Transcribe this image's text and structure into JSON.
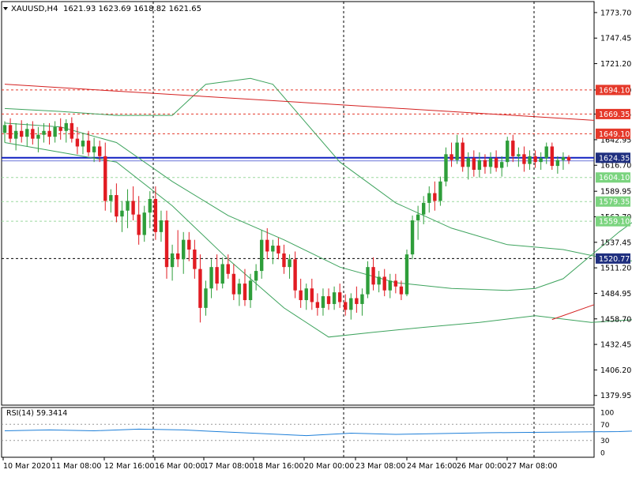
{
  "header": {
    "symbol": "XAUUSD,H4",
    "ohlc": "1621.93 1623.69 1618.82 1621.65"
  },
  "rsi_header": "RSI(14) 59.3414",
  "colors": {
    "bull": "#2e9e3a",
    "bear": "#e11b22",
    "band": "#3da35d",
    "trend": "#d42020",
    "hline_blue": "#1020c0",
    "badge_red": "#e5392a",
    "badge_green": "#7bd47f",
    "badge_blue": "#1f2f7f",
    "rsi": "#1e7fd8"
  },
  "chart_data": {
    "type": "candlestick",
    "symbol": "XAUUSD",
    "timeframe": "H4",
    "ylim": [
      1370,
      1785
    ],
    "y_ticks": [
      "1773.70",
      "1747.45",
      "1721.20",
      "1694.10",
      "1669.35",
      "1642.95",
      "1616.70",
      "1589.95",
      "1563.70",
      "1537.45",
      "1511.20",
      "1484.95",
      "1458.70",
      "1432.45",
      "1406.20",
      "1379.95"
    ],
    "x_ticks": [
      "10 Mar 2020",
      "11 Mar 08:00",
      "12 Mar 16:00",
      "16 Mar 00:00",
      "17 Mar 08:00",
      "18 Mar 16:00",
      "20 Mar 00:00",
      "23 Mar 08:00",
      "24 Mar 16:00",
      "26 Mar 00:00",
      "27 Mar 08:00"
    ],
    "level_lines": [
      {
        "label": "1694.10",
        "value": 1694.1,
        "style": "red-dashed"
      },
      {
        "label": "1669.35",
        "value": 1669.35,
        "style": "red-dashed"
      },
      {
        "label": "1649.10",
        "value": 1649.1,
        "style": "red-dashed"
      },
      {
        "label": "1624.35",
        "value": 1624.35,
        "style": "blue-solid"
      },
      {
        "label": "1604.10",
        "value": 1604.1,
        "style": "green-dashed"
      },
      {
        "label": "1579.35",
        "value": 1579.35,
        "style": "green-dashed"
      },
      {
        "label": "1559.10",
        "value": 1559.1,
        "style": "green-dashed"
      },
      {
        "label": "1520.77",
        "value": 1520.77,
        "style": "black-dashed"
      }
    ],
    "candles": [
      {
        "o": 1650,
        "h": 1662,
        "l": 1640,
        "c": 1658
      },
      {
        "o": 1658,
        "h": 1665,
        "l": 1640,
        "c": 1644
      },
      {
        "o": 1644,
        "h": 1660,
        "l": 1632,
        "c": 1652
      },
      {
        "o": 1652,
        "h": 1663,
        "l": 1640,
        "c": 1646
      },
      {
        "o": 1646,
        "h": 1660,
        "l": 1636,
        "c": 1654
      },
      {
        "o": 1654,
        "h": 1662,
        "l": 1638,
        "c": 1644
      },
      {
        "o": 1644,
        "h": 1656,
        "l": 1630,
        "c": 1648
      },
      {
        "o": 1648,
        "h": 1660,
        "l": 1640,
        "c": 1652
      },
      {
        "o": 1652,
        "h": 1660,
        "l": 1638,
        "c": 1646
      },
      {
        "o": 1646,
        "h": 1662,
        "l": 1640,
        "c": 1656
      },
      {
        "o": 1656,
        "h": 1665,
        "l": 1643,
        "c": 1652
      },
      {
        "o": 1652,
        "h": 1664,
        "l": 1640,
        "c": 1660
      },
      {
        "o": 1660,
        "h": 1666,
        "l": 1640,
        "c": 1644
      },
      {
        "o": 1644,
        "h": 1656,
        "l": 1628,
        "c": 1636
      },
      {
        "o": 1636,
        "h": 1650,
        "l": 1628,
        "c": 1642
      },
      {
        "o": 1642,
        "h": 1652,
        "l": 1626,
        "c": 1630
      },
      {
        "o": 1630,
        "h": 1645,
        "l": 1620,
        "c": 1636
      },
      {
        "o": 1636,
        "h": 1642,
        "l": 1620,
        "c": 1626
      },
      {
        "o": 1626,
        "h": 1640,
        "l": 1570,
        "c": 1580
      },
      {
        "o": 1580,
        "h": 1592,
        "l": 1568,
        "c": 1586
      },
      {
        "o": 1586,
        "h": 1598,
        "l": 1558,
        "c": 1564
      },
      {
        "o": 1564,
        "h": 1580,
        "l": 1548,
        "c": 1570
      },
      {
        "o": 1570,
        "h": 1592,
        "l": 1552,
        "c": 1580
      },
      {
        "o": 1580,
        "h": 1595,
        "l": 1560,
        "c": 1566
      },
      {
        "o": 1566,
        "h": 1585,
        "l": 1535,
        "c": 1545
      },
      {
        "o": 1545,
        "h": 1575,
        "l": 1538,
        "c": 1568
      },
      {
        "o": 1568,
        "h": 1590,
        "l": 1552,
        "c": 1582
      },
      {
        "o": 1582,
        "h": 1595,
        "l": 1540,
        "c": 1548
      },
      {
        "o": 1548,
        "h": 1570,
        "l": 1538,
        "c": 1560
      },
      {
        "o": 1560,
        "h": 1570,
        "l": 1500,
        "c": 1512
      },
      {
        "o": 1512,
        "h": 1535,
        "l": 1498,
        "c": 1526
      },
      {
        "o": 1526,
        "h": 1550,
        "l": 1512,
        "c": 1520
      },
      {
        "o": 1520,
        "h": 1548,
        "l": 1505,
        "c": 1540
      },
      {
        "o": 1540,
        "h": 1548,
        "l": 1518,
        "c": 1530
      },
      {
        "o": 1530,
        "h": 1540,
        "l": 1500,
        "c": 1510
      },
      {
        "o": 1510,
        "h": 1525,
        "l": 1455,
        "c": 1470
      },
      {
        "o": 1470,
        "h": 1498,
        "l": 1462,
        "c": 1490
      },
      {
        "o": 1490,
        "h": 1520,
        "l": 1480,
        "c": 1512
      },
      {
        "o": 1512,
        "h": 1525,
        "l": 1488,
        "c": 1495
      },
      {
        "o": 1495,
        "h": 1522,
        "l": 1490,
        "c": 1515
      },
      {
        "o": 1515,
        "h": 1525,
        "l": 1500,
        "c": 1505
      },
      {
        "o": 1505,
        "h": 1515,
        "l": 1478,
        "c": 1484
      },
      {
        "o": 1484,
        "h": 1500,
        "l": 1472,
        "c": 1495
      },
      {
        "o": 1495,
        "h": 1510,
        "l": 1472,
        "c": 1478
      },
      {
        "o": 1478,
        "h": 1505,
        "l": 1470,
        "c": 1498
      },
      {
        "o": 1498,
        "h": 1515,
        "l": 1488,
        "c": 1508
      },
      {
        "o": 1508,
        "h": 1550,
        "l": 1500,
        "c": 1540
      },
      {
        "o": 1540,
        "h": 1552,
        "l": 1520,
        "c": 1528
      },
      {
        "o": 1528,
        "h": 1540,
        "l": 1515,
        "c": 1534
      },
      {
        "o": 1534,
        "h": 1542,
        "l": 1520,
        "c": 1526
      },
      {
        "o": 1526,
        "h": 1535,
        "l": 1505,
        "c": 1512
      },
      {
        "o": 1512,
        "h": 1525,
        "l": 1500,
        "c": 1520
      },
      {
        "o": 1520,
        "h": 1528,
        "l": 1480,
        "c": 1488
      },
      {
        "o": 1488,
        "h": 1500,
        "l": 1470,
        "c": 1478
      },
      {
        "o": 1478,
        "h": 1495,
        "l": 1468,
        "c": 1490
      },
      {
        "o": 1490,
        "h": 1500,
        "l": 1468,
        "c": 1476
      },
      {
        "o": 1476,
        "h": 1485,
        "l": 1462,
        "c": 1470
      },
      {
        "o": 1470,
        "h": 1490,
        "l": 1462,
        "c": 1482
      },
      {
        "o": 1482,
        "h": 1490,
        "l": 1468,
        "c": 1474
      },
      {
        "o": 1474,
        "h": 1492,
        "l": 1468,
        "c": 1486
      },
      {
        "o": 1486,
        "h": 1495,
        "l": 1470,
        "c": 1476
      },
      {
        "o": 1476,
        "h": 1484,
        "l": 1462,
        "c": 1468
      },
      {
        "o": 1468,
        "h": 1485,
        "l": 1458,
        "c": 1480
      },
      {
        "o": 1480,
        "h": 1492,
        "l": 1465,
        "c": 1474
      },
      {
        "o": 1474,
        "h": 1490,
        "l": 1462,
        "c": 1484
      },
      {
        "o": 1484,
        "h": 1518,
        "l": 1480,
        "c": 1512
      },
      {
        "o": 1512,
        "h": 1522,
        "l": 1488,
        "c": 1494
      },
      {
        "o": 1494,
        "h": 1508,
        "l": 1486,
        "c": 1502
      },
      {
        "o": 1502,
        "h": 1510,
        "l": 1482,
        "c": 1488
      },
      {
        "o": 1488,
        "h": 1505,
        "l": 1480,
        "c": 1498
      },
      {
        "o": 1498,
        "h": 1505,
        "l": 1485,
        "c": 1492
      },
      {
        "o": 1492,
        "h": 1498,
        "l": 1478,
        "c": 1484
      },
      {
        "o": 1484,
        "h": 1530,
        "l": 1482,
        "c": 1525
      },
      {
        "o": 1525,
        "h": 1565,
        "l": 1520,
        "c": 1560
      },
      {
        "o": 1560,
        "h": 1575,
        "l": 1540,
        "c": 1566
      },
      {
        "o": 1566,
        "h": 1585,
        "l": 1556,
        "c": 1578
      },
      {
        "o": 1578,
        "h": 1595,
        "l": 1568,
        "c": 1588
      },
      {
        "o": 1588,
        "h": 1600,
        "l": 1570,
        "c": 1580
      },
      {
        "o": 1580,
        "h": 1605,
        "l": 1575,
        "c": 1600
      },
      {
        "o": 1600,
        "h": 1635,
        "l": 1595,
        "c": 1628
      },
      {
        "o": 1628,
        "h": 1640,
        "l": 1615,
        "c": 1622
      },
      {
        "o": 1622,
        "h": 1648,
        "l": 1618,
        "c": 1640
      },
      {
        "o": 1640,
        "h": 1645,
        "l": 1610,
        "c": 1615
      },
      {
        "o": 1615,
        "h": 1630,
        "l": 1602,
        "c": 1624
      },
      {
        "o": 1624,
        "h": 1632,
        "l": 1605,
        "c": 1612
      },
      {
        "o": 1612,
        "h": 1630,
        "l": 1604,
        "c": 1622
      },
      {
        "o": 1622,
        "h": 1628,
        "l": 1608,
        "c": 1615
      },
      {
        "o": 1615,
        "h": 1630,
        "l": 1608,
        "c": 1624
      },
      {
        "o": 1624,
        "h": 1632,
        "l": 1610,
        "c": 1614
      },
      {
        "o": 1614,
        "h": 1626,
        "l": 1605,
        "c": 1620
      },
      {
        "o": 1620,
        "h": 1646,
        "l": 1615,
        "c": 1642
      },
      {
        "o": 1642,
        "h": 1648,
        "l": 1620,
        "c": 1626
      },
      {
        "o": 1626,
        "h": 1635,
        "l": 1615,
        "c": 1628
      },
      {
        "o": 1628,
        "h": 1636,
        "l": 1610,
        "c": 1618
      },
      {
        "o": 1618,
        "h": 1632,
        "l": 1612,
        "c": 1626
      },
      {
        "o": 1626,
        "h": 1632,
        "l": 1614,
        "c": 1620
      },
      {
        "o": 1620,
        "h": 1630,
        "l": 1612,
        "c": 1624
      },
      {
        "o": 1624,
        "h": 1640,
        "l": 1618,
        "c": 1636
      },
      {
        "o": 1636,
        "h": 1640,
        "l": 1612,
        "c": 1616
      },
      {
        "o": 1616,
        "h": 1626,
        "l": 1608,
        "c": 1622
      },
      {
        "o": 1622,
        "h": 1630,
        "l": 1612,
        "c": 1625
      },
      {
        "o": 1625,
        "h": 1627,
        "l": 1618,
        "c": 1621.65
      }
    ],
    "bb_middle": [
      [
        0,
        1660
      ],
      [
        10,
        1656
      ],
      [
        20,
        1640
      ],
      [
        30,
        1600
      ],
      [
        40,
        1565
      ],
      [
        50,
        1540
      ],
      [
        60,
        1512
      ],
      [
        70,
        1496
      ],
      [
        80,
        1490
      ],
      [
        90,
        1488
      ],
      [
        95,
        1490
      ],
      [
        100,
        1500
      ],
      [
        110,
        1548
      ],
      [
        120,
        1590
      ],
      [
        130,
        1615
      ],
      [
        140,
        1622
      ],
      [
        145,
        1622
      ],
      [
        150,
        1614
      ]
    ],
    "bb_upper": [
      [
        0,
        1675
      ],
      [
        10,
        1672
      ],
      [
        20,
        1668
      ],
      [
        30,
        1668
      ],
      [
        36,
        1700
      ],
      [
        44,
        1706
      ],
      [
        48,
        1700
      ],
      [
        54,
        1660
      ],
      [
        60,
        1620
      ],
      [
        70,
        1578
      ],
      [
        80,
        1552
      ],
      [
        90,
        1535
      ],
      [
        100,
        1530
      ],
      [
        110,
        1518
      ],
      [
        120,
        1520
      ],
      [
        125,
        1530
      ],
      [
        130,
        1552
      ],
      [
        135,
        1625
      ],
      [
        140,
        1660
      ],
      [
        145,
        1672
      ],
      [
        150,
        1672
      ],
      [
        160,
        1666
      ],
      [
        168,
        1654
      ],
      [
        175,
        1644
      ],
      [
        185,
        1640
      ]
    ],
    "bb_lower": [
      [
        0,
        1640
      ],
      [
        10,
        1630
      ],
      [
        20,
        1620
      ],
      [
        30,
        1575
      ],
      [
        40,
        1520
      ],
      [
        50,
        1470
      ],
      [
        58,
        1440
      ],
      [
        66,
        1445
      ],
      [
        75,
        1450
      ],
      [
        85,
        1455
      ],
      [
        95,
        1462
      ],
      [
        105,
        1455
      ],
      [
        113,
        1458
      ],
      [
        120,
        1470
      ],
      [
        125,
        1466
      ],
      [
        130,
        1446
      ],
      [
        138,
        1430
      ],
      [
        142,
        1440
      ],
      [
        148,
        1480
      ],
      [
        153,
        1545
      ],
      [
        158,
        1582
      ],
      [
        165,
        1600
      ],
      [
        175,
        1608
      ],
      [
        185,
        1605
      ]
    ],
    "trendline_resistance": [
      [
        0,
        1700
      ],
      [
        185,
        1635
      ]
    ],
    "trendline_support": [
      [
        98,
        1458
      ],
      [
        185,
        1635
      ]
    ],
    "rsi": {
      "label": "RSI(14)",
      "value": 59.3414,
      "ylim": [
        0,
        100
      ],
      "y_ticks": [
        "100",
        "70",
        "30",
        "0"
      ],
      "levels": [
        70,
        30
      ],
      "points": [
        [
          0,
          54
        ],
        [
          8,
          56
        ],
        [
          16,
          54
        ],
        [
          24,
          58
        ],
        [
          32,
          56
        ],
        [
          38,
          52
        ],
        [
          46,
          47
        ],
        [
          54,
          42
        ],
        [
          62,
          48
        ],
        [
          70,
          45
        ],
        [
          78,
          47
        ],
        [
          86,
          49
        ],
        [
          94,
          50
        ],
        [
          102,
          51
        ],
        [
          110,
          52
        ],
        [
          120,
          57
        ],
        [
          130,
          62
        ],
        [
          140,
          65
        ],
        [
          150,
          64
        ],
        [
          160,
          62
        ],
        [
          170,
          60
        ],
        [
          180,
          59.3
        ]
      ]
    }
  }
}
